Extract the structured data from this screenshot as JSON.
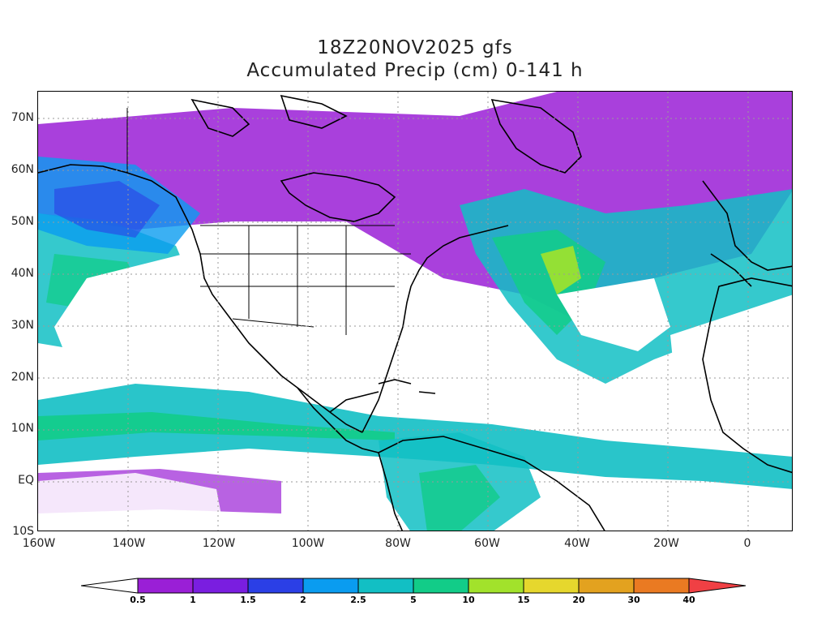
{
  "title": {
    "line1": "18Z20NOV2025 gfs",
    "line2": "Accumulated Precip (cm) 0-141 h"
  },
  "axes": {
    "lat_labels": [
      "70N",
      "60N",
      "50N",
      "40N",
      "30N",
      "20N",
      "10N",
      "EQ",
      "10S"
    ],
    "lon_labels": [
      "160W",
      "140W",
      "120W",
      "100W",
      "80W",
      "60W",
      "40W",
      "20W",
      "0"
    ]
  },
  "colorbar": {
    "levels": [
      "0.5",
      "1",
      "1.5",
      "2",
      "2.5",
      "5",
      "10",
      "15",
      "20",
      "30",
      "40"
    ],
    "colors": [
      "#ffffff",
      "#9a1fd6",
      "#7a1ee0",
      "#2b3fe6",
      "#0a9cf0",
      "#12bfc4",
      "#12cc88",
      "#a2e22b",
      "#e6d72d",
      "#e3a21f",
      "#ea7a22",
      "#f04044"
    ]
  },
  "map_colors": {
    "land_outline": "#000000",
    "grid": "#9a9a9a"
  }
}
